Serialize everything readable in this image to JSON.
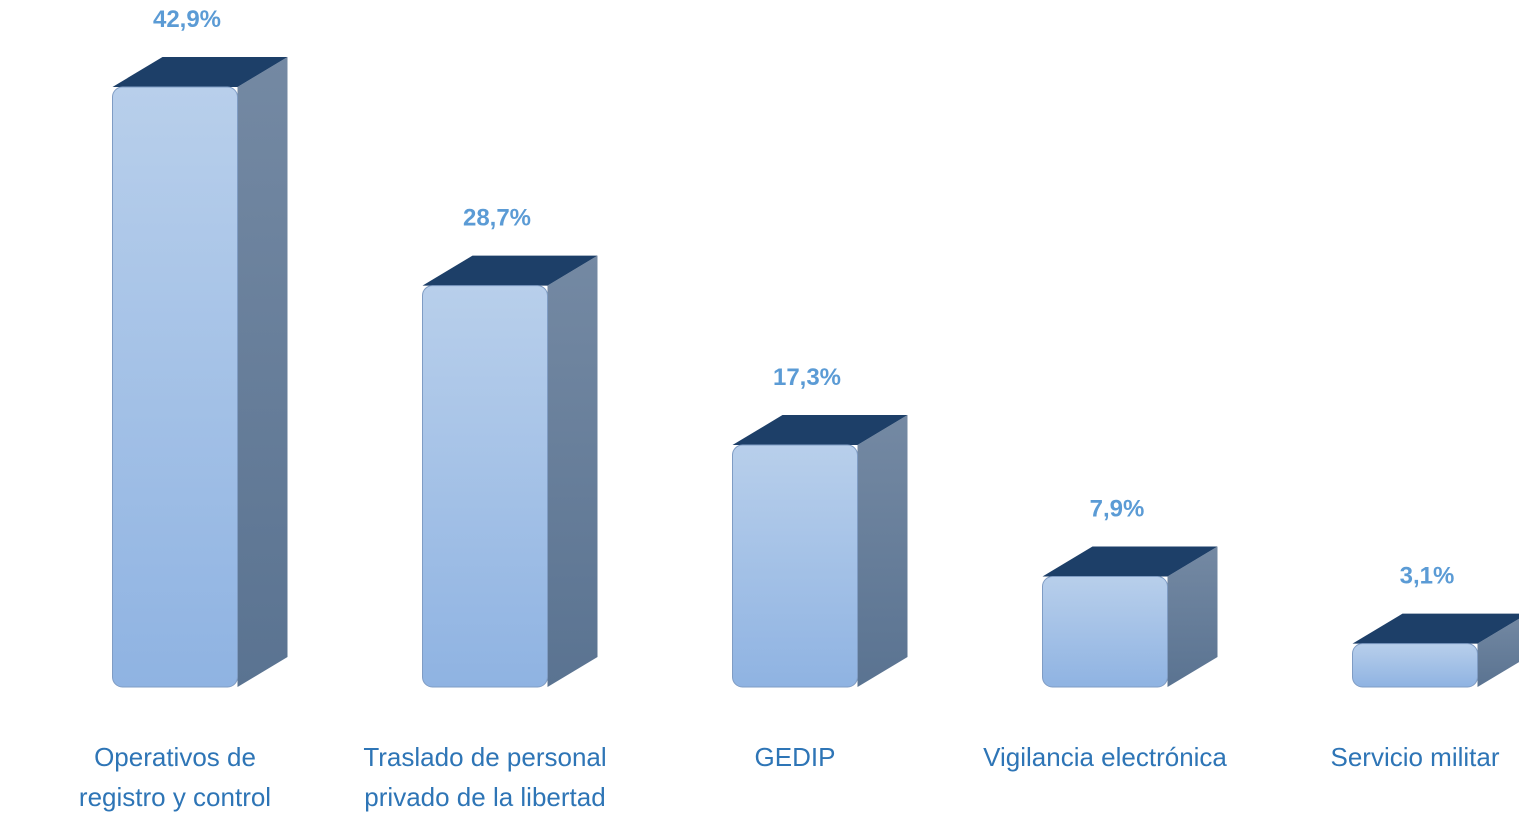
{
  "chart_data": {
    "type": "bar",
    "categories": [
      "Operativos de\nregistro y control",
      "Traslado de personal\nprivado de la libertad",
      "GEDIP",
      "Vigilancia electrónica",
      "Servicio militar"
    ],
    "values": [
      42.9,
      28.7,
      17.3,
      7.9,
      3.1
    ],
    "value_labels": [
      "42,9%",
      "28,7%",
      "17,3%",
      "7,9%",
      "3,1%"
    ],
    "color": "#9dbde6"
  }
}
